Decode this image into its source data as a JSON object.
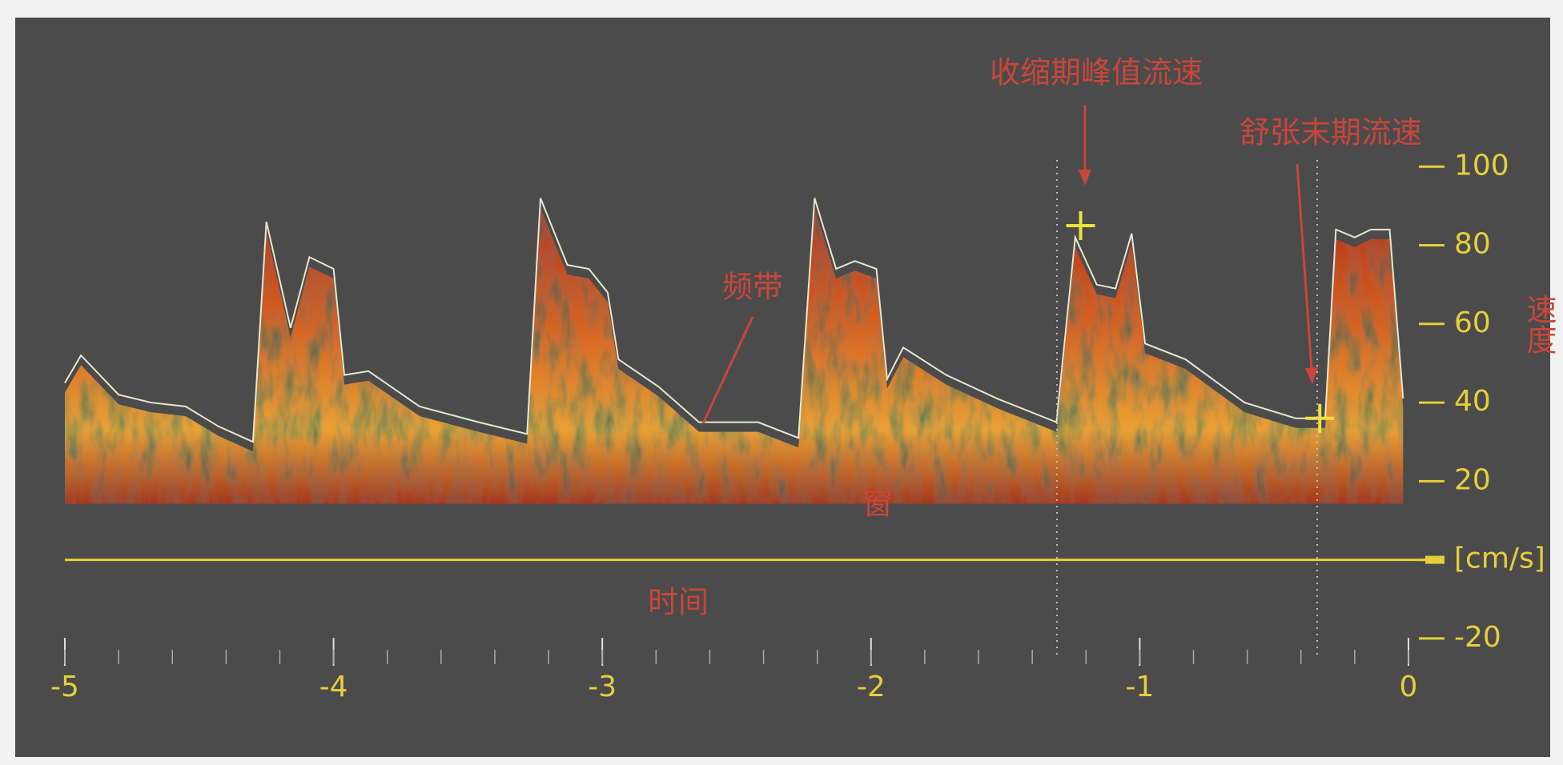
{
  "chart_data": {
    "type": "doppler-spectrum",
    "x_label": "时间",
    "y_label": "速度",
    "xlim": [
      -5,
      0
    ],
    "ylim": [
      -30,
      120
    ],
    "xticks": [
      -5,
      -4,
      -3,
      -2,
      -1,
      0
    ],
    "yticks": [
      100,
      80,
      60,
      40,
      20,
      {
        "value": 0,
        "label": "[cm/s]"
      },
      -20
    ],
    "series": [
      {
        "color": "#e8e6cf",
        "x": [
          -5,
          -4.94,
          -4.8,
          -4.68,
          -4.55,
          -4.43,
          -4.3,
          -4.25,
          -4.16,
          -4.09,
          -4,
          -3.96,
          -3.87,
          -3.68,
          -3.46,
          -3.28,
          -3.23,
          -3.13,
          -3.05,
          -2.98,
          -2.94,
          -2.79,
          -2.64,
          -2.42,
          -2.27,
          -2.21,
          -2.13,
          -2.06,
          -1.98,
          -1.94,
          -1.88,
          -1.72,
          -1.53,
          -1.31,
          -1.24,
          -1.16,
          -1.09,
          -1.03,
          -0.98,
          -0.83,
          -0.61,
          -0.42,
          -0.31,
          -0.27,
          -0.2,
          -0.14,
          -0.07,
          -0.02
        ],
        "values": [
          45,
          52,
          42,
          40,
          39,
          34,
          30,
          86,
          59,
          77,
          74,
          47,
          48,
          39,
          35,
          32,
          92,
          75,
          74,
          68,
          51,
          44,
          35,
          35,
          31,
          92,
          74,
          76,
          74,
          46,
          54,
          47,
          41,
          35,
          82,
          70,
          69,
          83,
          55,
          51,
          40,
          36,
          36,
          84,
          82,
          84,
          84,
          41
        ]
      }
    ],
    "annotations": [
      {
        "text": "收缩期峰值流速",
        "x": -1.22,
        "y": 85
      },
      {
        "text": "舒张末期流速",
        "x": -0.33,
        "y": 36
      },
      {
        "text": "频带"
      },
      {
        "text": "窗"
      }
    ],
    "marker_color": "#f0e040"
  }
}
